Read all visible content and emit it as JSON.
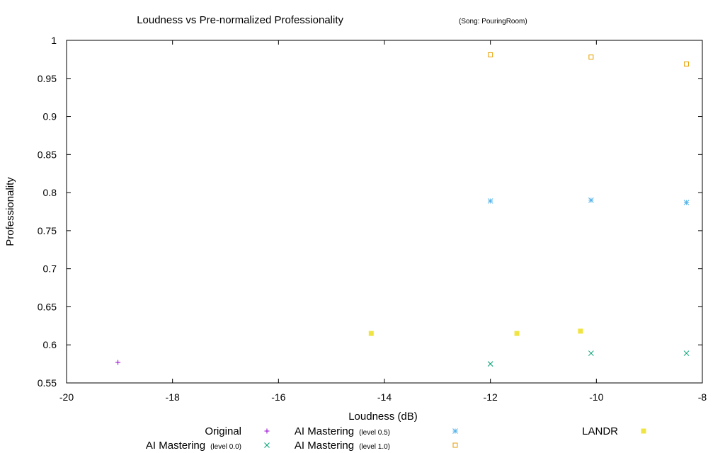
{
  "chart_data": {
    "type": "scatter",
    "title": "Loudness vs Pre-normalized Professionality",
    "subtitle": "(Song: PouringRoom)",
    "xlabel": "Loudness (dB)",
    "ylabel": "Professionality",
    "xlim": [
      -20,
      -8
    ],
    "ylim": [
      0.55,
      1.0
    ],
    "x_ticks": [
      "-20",
      "-18",
      "-16",
      "-14",
      "-12",
      "-10",
      "-8"
    ],
    "y_ticks": [
      "0.55",
      "0.6",
      "0.65",
      "0.7",
      "0.75",
      "0.8",
      "0.85",
      "0.9",
      "0.95",
      "1"
    ],
    "grid": false,
    "legend_position": "bottom",
    "series": [
      {
        "name": "Original",
        "sublabel": "",
        "marker": "plus",
        "color": "#9400d3",
        "points": [
          {
            "x": -19.03,
            "y": 0.577
          }
        ]
      },
      {
        "name": "AI Mastering",
        "sublabel": "(level 0.0)",
        "marker": "cross",
        "color": "#009e73",
        "points": [
          {
            "x": -12.0,
            "y": 0.575
          },
          {
            "x": -10.1,
            "y": 0.589
          },
          {
            "x": -8.3,
            "y": 0.589
          }
        ]
      },
      {
        "name": "AI Mastering",
        "sublabel": "(level 0.5)",
        "marker": "star",
        "color": "#56b4e9",
        "points": [
          {
            "x": -12.0,
            "y": 0.789
          },
          {
            "x": -10.1,
            "y": 0.79
          },
          {
            "x": -8.3,
            "y": 0.787
          }
        ]
      },
      {
        "name": "AI Mastering",
        "sublabel": "(level 1.0)",
        "marker": "box",
        "color": "#e69f00",
        "points": [
          {
            "x": -12.0,
            "y": 0.981
          },
          {
            "x": -10.1,
            "y": 0.978
          },
          {
            "x": -8.3,
            "y": 0.969
          }
        ]
      },
      {
        "name": "LANDR",
        "sublabel": "",
        "marker": "filledbox",
        "color": "#f0e442",
        "points": [
          {
            "x": -14.25,
            "y": 0.615
          },
          {
            "x": -11.5,
            "y": 0.615
          },
          {
            "x": -10.3,
            "y": 0.618
          }
        ]
      }
    ]
  }
}
